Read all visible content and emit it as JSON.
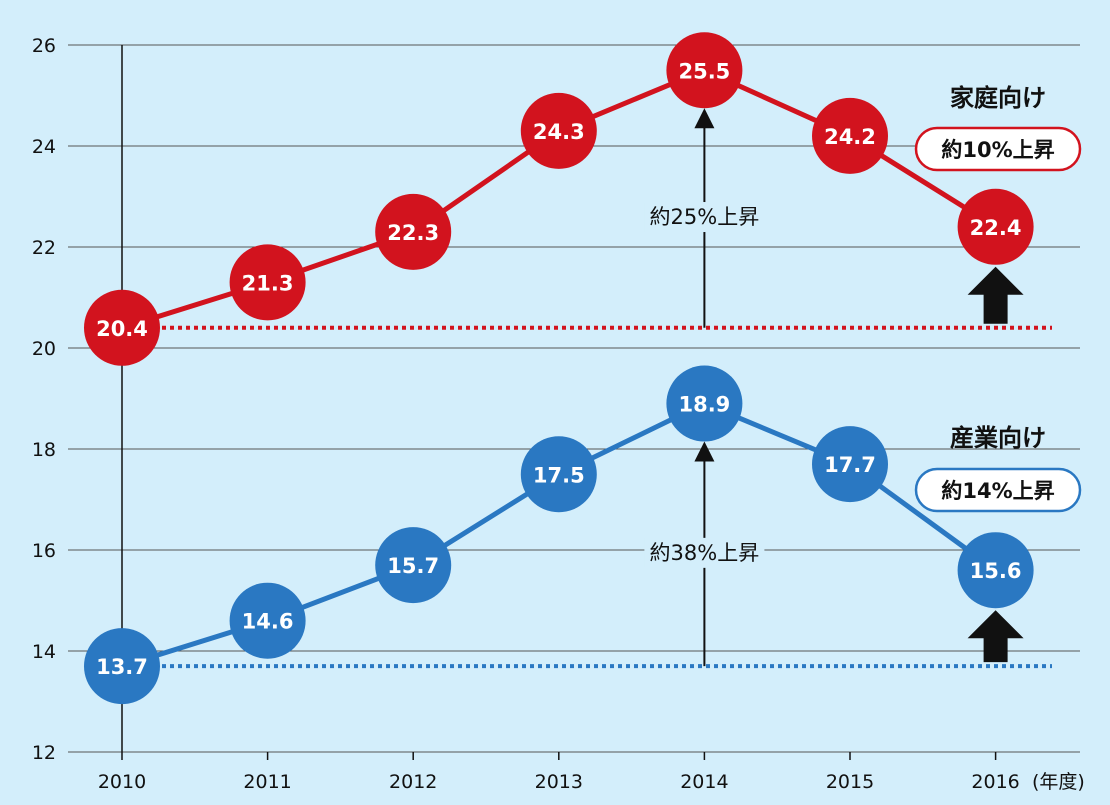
{
  "chart_data": {
    "type": "line",
    "x": [
      "2010",
      "2011",
      "2012",
      "2013",
      "2014",
      "2015",
      "2016"
    ],
    "x_unit": "(年度)",
    "ylim": [
      12,
      26
    ],
    "yticks": [
      12,
      14,
      16,
      18,
      20,
      22,
      24,
      26
    ],
    "grid": true,
    "series": [
      {
        "name": "家庭向け",
        "values": [
          20.4,
          21.3,
          22.3,
          24.3,
          25.5,
          24.2,
          22.4
        ],
        "data_labels": [
          "20.4",
          "21.3",
          "22.3",
          "24.3",
          "25.5",
          "24.2",
          "22.4"
        ],
        "color": "#d2131e",
        "badge": "約10%上昇",
        "rise_annotation": "約25%上昇"
      },
      {
        "name": "産業向け",
        "values": [
          13.7,
          14.6,
          15.7,
          17.5,
          18.9,
          17.7,
          15.6
        ],
        "data_labels": [
          "13.7",
          "14.6",
          "15.7",
          "17.5",
          "18.9",
          "17.7",
          "15.6"
        ],
        "color": "#2a78c2",
        "badge": "約14%上昇",
        "rise_annotation": "約38%上昇"
      }
    ]
  },
  "colors": {
    "background": "#d3eefb",
    "grid": "#555555",
    "arrow": "#111111"
  }
}
